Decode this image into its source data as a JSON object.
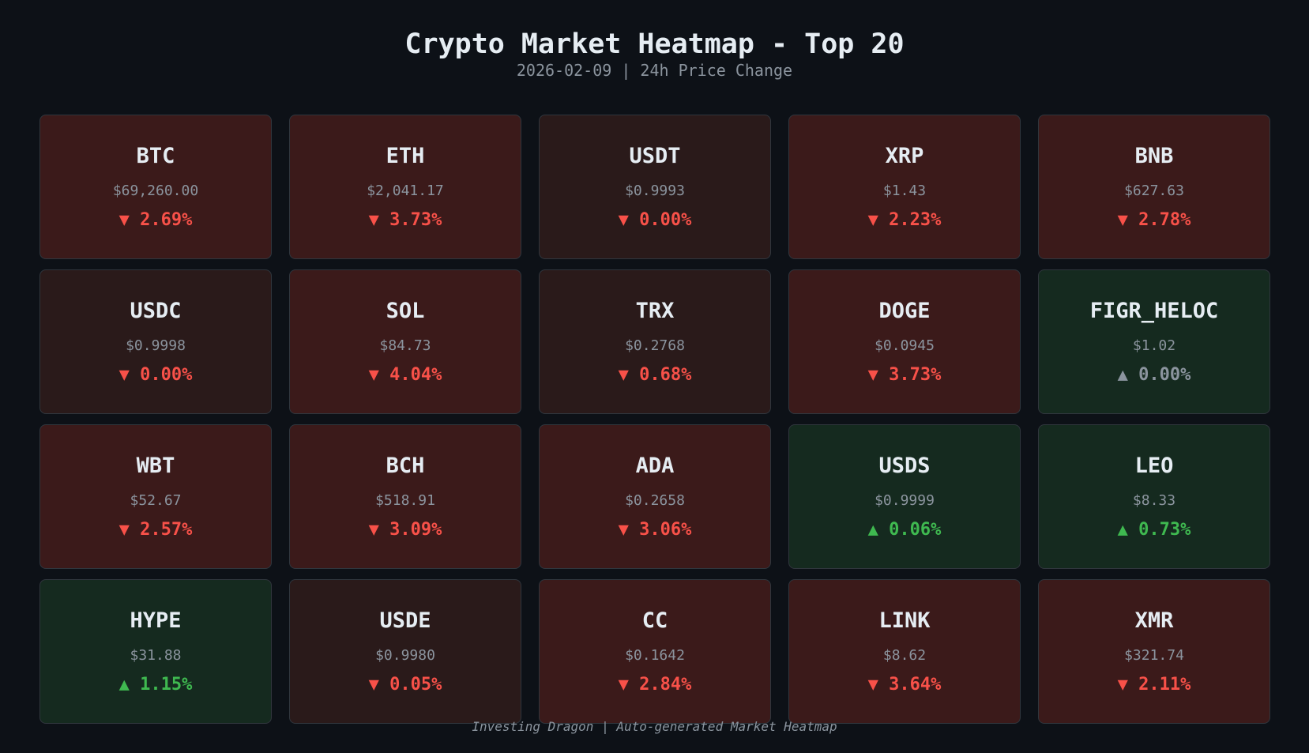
{
  "header": {
    "title": "Crypto Market Heatmap - Top 20",
    "subtitle": "2026-02-09 | 24h Price Change"
  },
  "colors": {
    "background": "#0d1117",
    "down": "#f85149",
    "up": "#3fb950",
    "flat": "#8b949e",
    "card_red": "#3b1a1a",
    "card_neutral": "#2a1a1a",
    "card_green": "#152a1f"
  },
  "cards": [
    {
      "symbol": "BTC",
      "price": "$69,260.00",
      "change": "▼ 2.69%",
      "dir": "down",
      "tone": "red"
    },
    {
      "symbol": "ETH",
      "price": "$2,041.17",
      "change": "▼ 3.73%",
      "dir": "down",
      "tone": "red"
    },
    {
      "symbol": "USDT",
      "price": "$0.9993",
      "change": "▼ 0.00%",
      "dir": "down",
      "tone": "neutral"
    },
    {
      "symbol": "XRP",
      "price": "$1.43",
      "change": "▼ 2.23%",
      "dir": "down",
      "tone": "red"
    },
    {
      "symbol": "BNB",
      "price": "$627.63",
      "change": "▼ 2.78%",
      "dir": "down",
      "tone": "red"
    },
    {
      "symbol": "USDC",
      "price": "$0.9998",
      "change": "▼ 0.00%",
      "dir": "down",
      "tone": "neutral"
    },
    {
      "symbol": "SOL",
      "price": "$84.73",
      "change": "▼ 4.04%",
      "dir": "down",
      "tone": "red"
    },
    {
      "symbol": "TRX",
      "price": "$0.2768",
      "change": "▼ 0.68%",
      "dir": "down",
      "tone": "neutral"
    },
    {
      "symbol": "DOGE",
      "price": "$0.0945",
      "change": "▼ 3.73%",
      "dir": "down",
      "tone": "red"
    },
    {
      "symbol": "FIGR_HELOC",
      "price": "$1.02",
      "change": "▲ 0.00%",
      "dir": "flat",
      "tone": "green"
    },
    {
      "symbol": "WBT",
      "price": "$52.67",
      "change": "▼ 2.57%",
      "dir": "down",
      "tone": "red"
    },
    {
      "symbol": "BCH",
      "price": "$518.91",
      "change": "▼ 3.09%",
      "dir": "down",
      "tone": "red"
    },
    {
      "symbol": "ADA",
      "price": "$0.2658",
      "change": "▼ 3.06%",
      "dir": "down",
      "tone": "red"
    },
    {
      "symbol": "USDS",
      "price": "$0.9999",
      "change": "▲ 0.06%",
      "dir": "up",
      "tone": "green"
    },
    {
      "symbol": "LEO",
      "price": "$8.33",
      "change": "▲ 0.73%",
      "dir": "up",
      "tone": "green"
    },
    {
      "symbol": "HYPE",
      "price": "$31.88",
      "change": "▲ 1.15%",
      "dir": "up",
      "tone": "green"
    },
    {
      "symbol": "USDE",
      "price": "$0.9980",
      "change": "▼ 0.05%",
      "dir": "down",
      "tone": "neutral"
    },
    {
      "symbol": "CC",
      "price": "$0.1642",
      "change": "▼ 2.84%",
      "dir": "down",
      "tone": "red"
    },
    {
      "symbol": "LINK",
      "price": "$8.62",
      "change": "▼ 3.64%",
      "dir": "down",
      "tone": "red"
    },
    {
      "symbol": "XMR",
      "price": "$321.74",
      "change": "▼ 2.11%",
      "dir": "down",
      "tone": "red"
    }
  ],
  "footer": "Investing Dragon | Auto-generated Market Heatmap"
}
